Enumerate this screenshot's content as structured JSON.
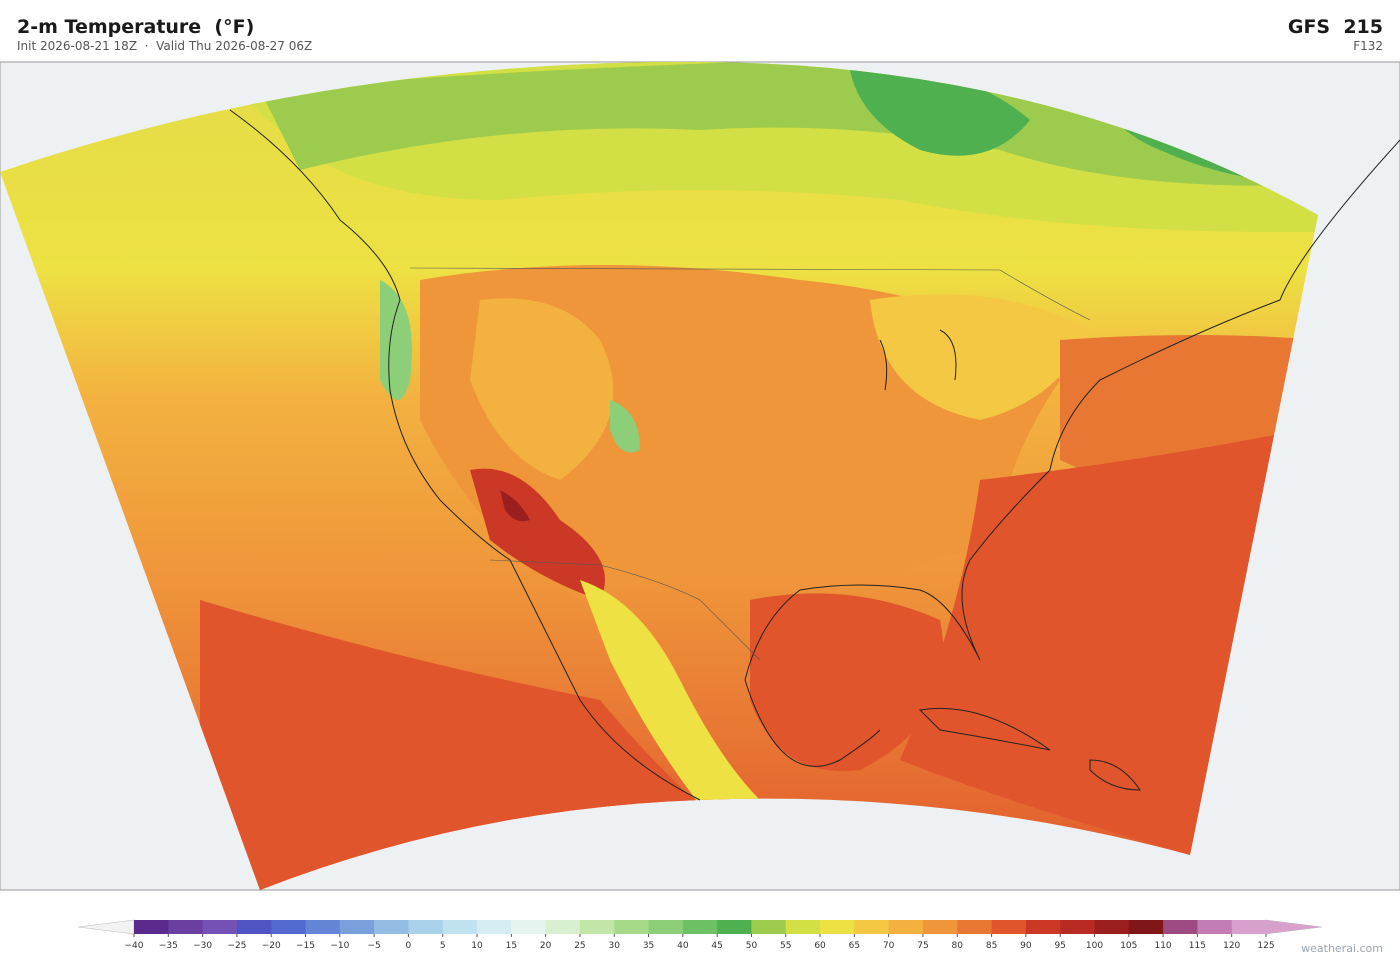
{
  "header": {
    "title": "2-m Temperature  (°F)",
    "subtitle": "Init 2026-08-21 18Z  ·  Valid Thu 2026-08-27 06Z",
    "model": "GFS  215",
    "forecast_hour": "F132"
  },
  "colorbar": {
    "ticks": [
      {
        "value": -40,
        "label": "−40"
      },
      {
        "value": -35,
        "label": "−35"
      },
      {
        "value": -30,
        "label": "−30"
      },
      {
        "value": -25,
        "label": "−25"
      },
      {
        "value": -20,
        "label": "−20"
      },
      {
        "value": -15,
        "label": "−15"
      },
      {
        "value": -10,
        "label": "−10"
      },
      {
        "value": -5,
        "label": "−5"
      },
      0,
      5,
      10,
      15,
      20,
      25,
      30,
      35,
      40,
      45,
      50,
      55,
      60,
      65,
      70,
      75,
      80,
      85,
      90,
      95,
      100,
      105,
      110,
      115,
      120,
      125
    ],
    "colors": [
      "#5a2a8c",
      "#6b3fa0",
      "#7452b5",
      "#4f53c4",
      "#5269d0",
      "#6485d6",
      "#7aa0dc",
      "#93bde3",
      "#a9d2ea",
      "#c0e2f0",
      "#d6eef3",
      "#e6f4f0",
      "#d8efd0",
      "#c2e5a8",
      "#a6d98a",
      "#8ccf78",
      "#6cc164",
      "#4fb050",
      "#9ccb4e",
      "#d2df45",
      "#ede143",
      "#f5c843",
      "#f3b240",
      "#ef953a",
      "#e87734",
      "#e0552b",
      "#cc3826",
      "#b82a22",
      "#9c1f1f",
      "#7f1719",
      "#9e4a83",
      "#c27db5",
      "#d8a0cc"
    ]
  },
  "credit": "weatherai.com"
}
